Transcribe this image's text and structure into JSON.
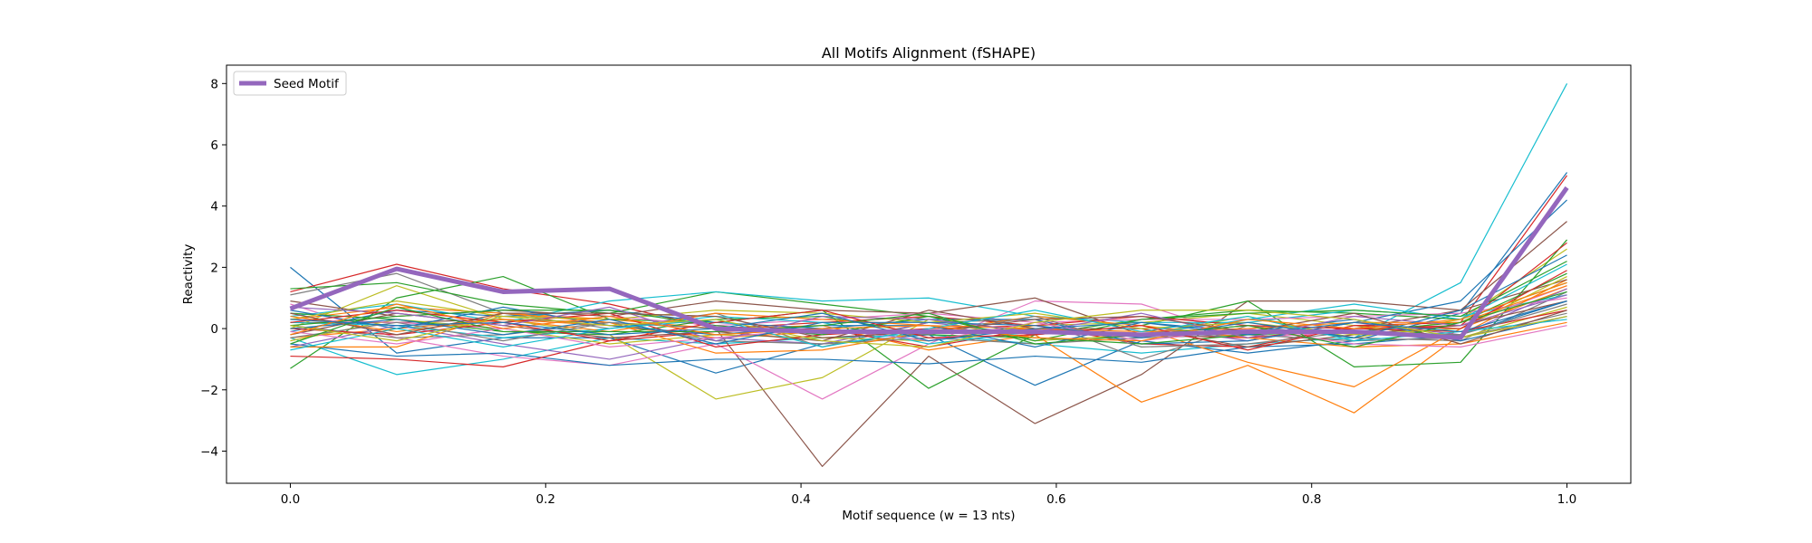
{
  "chart_data": {
    "type": "line",
    "title": "All Motifs Alignment (fSHAPE)",
    "xlabel": "Motif sequence (w = 13 nts)",
    "ylabel": "Reactivity",
    "xlim": [
      -0.05,
      1.05
    ],
    "ylim": [
      -5.05,
      8.6
    ],
    "xticks": [
      0.0,
      0.2,
      0.4,
      0.6,
      0.8,
      1.0
    ],
    "xtick_labels": [
      "0.0",
      "0.2",
      "0.4",
      "0.6",
      "0.8",
      "1.0"
    ],
    "yticks": [
      -4,
      -2,
      0,
      2,
      4,
      6,
      8
    ],
    "ytick_labels": [
      "−4",
      "−2",
      "0",
      "2",
      "4",
      "6",
      "8"
    ],
    "grid": false,
    "legend": {
      "position": "top-left",
      "entries": [
        {
          "label": "Seed Motif",
          "color": "#9467bd"
        }
      ]
    },
    "x": [
      0.0,
      0.0833,
      0.1667,
      0.25,
      0.3333,
      0.4167,
      0.5,
      0.5833,
      0.6667,
      0.75,
      0.8333,
      0.9167,
      1.0
    ],
    "seed_series": {
      "name": "Seed Motif",
      "color": "#9467bd",
      "values": [
        0.65,
        1.95,
        1.2,
        1.3,
        0.0,
        -0.1,
        -0.1,
        -0.1,
        -0.2,
        -0.1,
        -0.1,
        -0.3,
        4.6
      ]
    },
    "series": [
      {
        "color": "#17becf",
        "values": [
          -0.3,
          -1.5,
          -1.0,
          -0.3,
          -0.5,
          -0.3,
          -0.2,
          -0.5,
          -0.8,
          -0.5,
          -0.3,
          1.5,
          8.0
        ]
      },
      {
        "color": "#1f77b4",
        "values": [
          2.0,
          -0.8,
          -0.3,
          -0.3,
          -1.45,
          -0.5,
          -0.2,
          -1.85,
          -0.4,
          -0.8,
          -0.4,
          0.5,
          5.1
        ]
      },
      {
        "color": "#d62728",
        "values": [
          1.2,
          2.1,
          1.3,
          0.8,
          0.0,
          0.2,
          0.4,
          0.1,
          -0.5,
          -0.6,
          0.1,
          0.2,
          5.0
        ]
      },
      {
        "color": "#8c564b",
        "values": [
          0.2,
          0.2,
          0.3,
          0.2,
          0.0,
          -4.5,
          -0.9,
          -3.1,
          -1.5,
          0.9,
          0.9,
          0.6,
          3.5
        ]
      },
      {
        "color": "#bcbd22",
        "values": [
          0.0,
          1.4,
          0.3,
          -0.2,
          -2.3,
          -1.6,
          0.3,
          -0.4,
          -0.2,
          0.4,
          -0.3,
          0.3,
          2.6
        ]
      },
      {
        "color": "#e377c2",
        "values": [
          0.8,
          -0.3,
          -0.9,
          -1.2,
          -0.5,
          -2.3,
          -0.5,
          0.9,
          0.8,
          -0.3,
          -0.1,
          0.1,
          1.4
        ]
      },
      {
        "color": "#ff7f0e",
        "values": [
          0.3,
          0.7,
          0.5,
          0.3,
          0.0,
          0.1,
          -0.7,
          -0.2,
          -2.4,
          -1.2,
          -2.75,
          -0.2,
          1.6
        ]
      },
      {
        "color": "#2ca02c",
        "values": [
          -1.3,
          1.0,
          1.7,
          0.3,
          0.2,
          0.6,
          -1.95,
          -0.2,
          0.1,
          0.9,
          -1.25,
          -1.1,
          2.9
        ]
      },
      {
        "color": "#7f7f7f",
        "values": [
          1.1,
          1.8,
          0.5,
          0.0,
          0.5,
          -0.6,
          0.2,
          0.3,
          -1.0,
          0.1,
          -0.3,
          -0.4,
          1.2
        ]
      },
      {
        "color": "#ff7f0e",
        "values": [
          -0.3,
          0.0,
          0.3,
          0.1,
          -0.3,
          -0.1,
          -0.1,
          0.0,
          0.0,
          -1.1,
          -1.9,
          0.0,
          1.3
        ]
      },
      {
        "color": "#1f77b4",
        "values": [
          -0.5,
          -0.9,
          -0.8,
          -1.2,
          -1.0,
          -1.0,
          -1.15,
          -0.9,
          -1.1,
          -0.6,
          -0.5,
          -0.2,
          0.9
        ]
      },
      {
        "color": "#d62728",
        "values": [
          -0.9,
          -1.0,
          -1.25,
          -0.4,
          -0.1,
          0.0,
          -0.6,
          0.0,
          -0.2,
          -0.3,
          0.0,
          0.1,
          2.8
        ]
      },
      {
        "color": "#2ca02c",
        "values": [
          1.3,
          1.5,
          0.8,
          0.5,
          1.2,
          0.8,
          0.4,
          -0.2,
          0.3,
          0.6,
          0.5,
          0.3,
          1.5
        ]
      },
      {
        "color": "#17becf",
        "values": [
          0.4,
          0.8,
          0.2,
          0.9,
          1.2,
          0.9,
          1.0,
          0.4,
          0.2,
          0.2,
          0.6,
          0.4,
          1.1
        ]
      },
      {
        "color": "#9467bd",
        "values": [
          -0.6,
          0.1,
          -0.5,
          -1.0,
          -0.3,
          -0.5,
          0.2,
          -0.2,
          0.1,
          -0.4,
          0.2,
          -0.2,
          1.3
        ]
      },
      {
        "color": "#8c564b",
        "values": [
          0.9,
          0.4,
          0.6,
          0.4,
          0.9,
          0.6,
          0.5,
          1.0,
          -0.2,
          0.1,
          0.0,
          0.6,
          1.6
        ]
      },
      {
        "color": "#bcbd22",
        "values": [
          -0.4,
          0.3,
          0.0,
          -0.5,
          -0.2,
          -0.3,
          -0.4,
          0.1,
          0.2,
          0.5,
          0.1,
          -0.3,
          0.7
        ]
      },
      {
        "color": "#7f7f7f",
        "values": [
          0.1,
          -0.3,
          -0.2,
          0.2,
          -0.4,
          -0.5,
          -0.3,
          -0.5,
          -0.3,
          -0.2,
          -0.4,
          -0.3,
          0.5
        ]
      },
      {
        "color": "#e377c2",
        "values": [
          0.3,
          0.2,
          0.0,
          0.4,
          0.1,
          0.3,
          0.5,
          0.2,
          0.3,
          0.3,
          0.4,
          0.5,
          1.0
        ]
      },
      {
        "color": "#1f77b4",
        "values": [
          -0.1,
          0.6,
          0.4,
          0.6,
          0.2,
          0.0,
          0.3,
          0.3,
          -0.5,
          -0.4,
          0.2,
          0.9,
          4.2
        ]
      },
      {
        "color": "#ff7f0e",
        "values": [
          -0.6,
          -0.6,
          0.5,
          0.2,
          -0.8,
          -0.7,
          -0.1,
          0.4,
          0.1,
          -0.3,
          -0.6,
          -0.5,
          0.2
        ]
      },
      {
        "color": "#2ca02c",
        "values": [
          0.5,
          0.3,
          -0.1,
          -0.2,
          0.3,
          0.4,
          -0.2,
          -0.3,
          -0.5,
          -0.2,
          -0.1,
          0.2,
          1.8
        ]
      },
      {
        "color": "#d62728",
        "values": [
          0.0,
          -0.2,
          0.2,
          0.5,
          -0.6,
          -0.2,
          0.0,
          0.1,
          0.4,
          0.1,
          0.0,
          -0.1,
          0.6
        ]
      },
      {
        "color": "#17becf",
        "values": [
          0.2,
          0.1,
          -0.3,
          0.0,
          0.4,
          0.2,
          -0.5,
          -0.1,
          -0.2,
          0.3,
          0.8,
          0.3,
          2.1
        ]
      },
      {
        "color": "#8c564b",
        "values": [
          -0.2,
          0.5,
          0.1,
          -0.3,
          -0.1,
          -0.4,
          0.6,
          0.0,
          0.0,
          -0.6,
          -0.2,
          0.1,
          0.9
        ]
      },
      {
        "color": "#1f77b4",
        "values": [
          0.6,
          0.0,
          0.7,
          0.1,
          -0.2,
          0.1,
          0.1,
          -0.6,
          0.2,
          -0.1,
          0.3,
          -0.4,
          0.4
        ]
      },
      {
        "color": "#bcbd22",
        "values": [
          0.3,
          0.9,
          0.4,
          0.3,
          0.6,
          0.5,
          0.2,
          0.5,
          0.0,
          0.2,
          -0.2,
          0.0,
          1.7
        ]
      },
      {
        "color": "#e377c2",
        "values": [
          -0.1,
          -0.5,
          0.0,
          -0.6,
          -0.3,
          0.0,
          -0.4,
          0.2,
          -0.4,
          0.0,
          -0.5,
          -0.6,
          0.1
        ]
      },
      {
        "color": "#2ca02c",
        "values": [
          0.1,
          0.4,
          0.6,
          0.6,
          0.1,
          -0.2,
          0.4,
          -0.4,
          0.3,
          0.5,
          0.6,
          0.4,
          2.2
        ]
      },
      {
        "color": "#ff7f0e",
        "values": [
          0.4,
          -0.1,
          0.3,
          -0.1,
          0.5,
          0.3,
          0.1,
          0.0,
          -0.1,
          0.0,
          0.2,
          0.2,
          1.4
        ]
      },
      {
        "color": "#7f7f7f",
        "values": [
          -0.3,
          0.2,
          -0.4,
          0.2,
          0.0,
          -0.1,
          -0.2,
          0.4,
          -0.6,
          -0.5,
          -0.1,
          -0.2,
          0.8
        ]
      },
      {
        "color": "#9467bd",
        "values": [
          0.7,
          0.5,
          0.1,
          0.7,
          -0.4,
          0.4,
          0.3,
          -0.1,
          0.5,
          -0.3,
          0.4,
          0.1,
          1.1
        ]
      },
      {
        "color": "#17becf",
        "values": [
          -0.7,
          0.0,
          -0.6,
          0.0,
          0.3,
          -0.6,
          0.0,
          0.6,
          -0.1,
          0.4,
          -0.4,
          -0.1,
          0.3
        ]
      },
      {
        "color": "#d62728",
        "values": [
          0.2,
          0.6,
          0.2,
          -0.4,
          0.2,
          0.6,
          -0.3,
          -0.2,
          0.1,
          -0.7,
          0.1,
          0.0,
          1.9
        ]
      },
      {
        "color": "#1f77b4",
        "values": [
          0.0,
          0.3,
          -0.2,
          0.3,
          -0.5,
          0.2,
          0.2,
          0.1,
          -0.3,
          0.2,
          -0.3,
          0.6,
          2.4
        ]
      },
      {
        "color": "#8c564b",
        "values": [
          0.5,
          -0.2,
          0.5,
          0.5,
          0.4,
          -0.3,
          -0.1,
          0.3,
          0.4,
          -0.1,
          0.5,
          -0.5,
          0.6
        ]
      },
      {
        "color": "#2ca02c",
        "values": [
          -0.5,
          0.7,
          -0.1,
          -0.1,
          -0.1,
          0.1,
          0.5,
          -0.5,
          -0.2,
          0.1,
          -0.6,
          0.2,
          1.2
        ]
      },
      {
        "color": "#bcbd22",
        "values": [
          0.1,
          -0.4,
          0.4,
          0.1,
          0.3,
          -0.4,
          -0.6,
          0.2,
          0.6,
          0.6,
          0.3,
          -0.3,
          0.4
        ]
      },
      {
        "color": "#ff7f0e",
        "values": [
          -0.2,
          0.8,
          0.0,
          0.4,
          -0.2,
          0.0,
          0.1,
          -0.3,
          -0.4,
          0.3,
          0.0,
          0.3,
          1.5
        ]
      },
      {
        "color": "#1f77b4",
        "values": [
          0.3,
          0.1,
          0.2,
          -0.2,
          0.0,
          0.5,
          -0.4,
          0.0,
          0.2,
          -0.2,
          0.2,
          -0.1,
          0.9
        ]
      }
    ]
  }
}
